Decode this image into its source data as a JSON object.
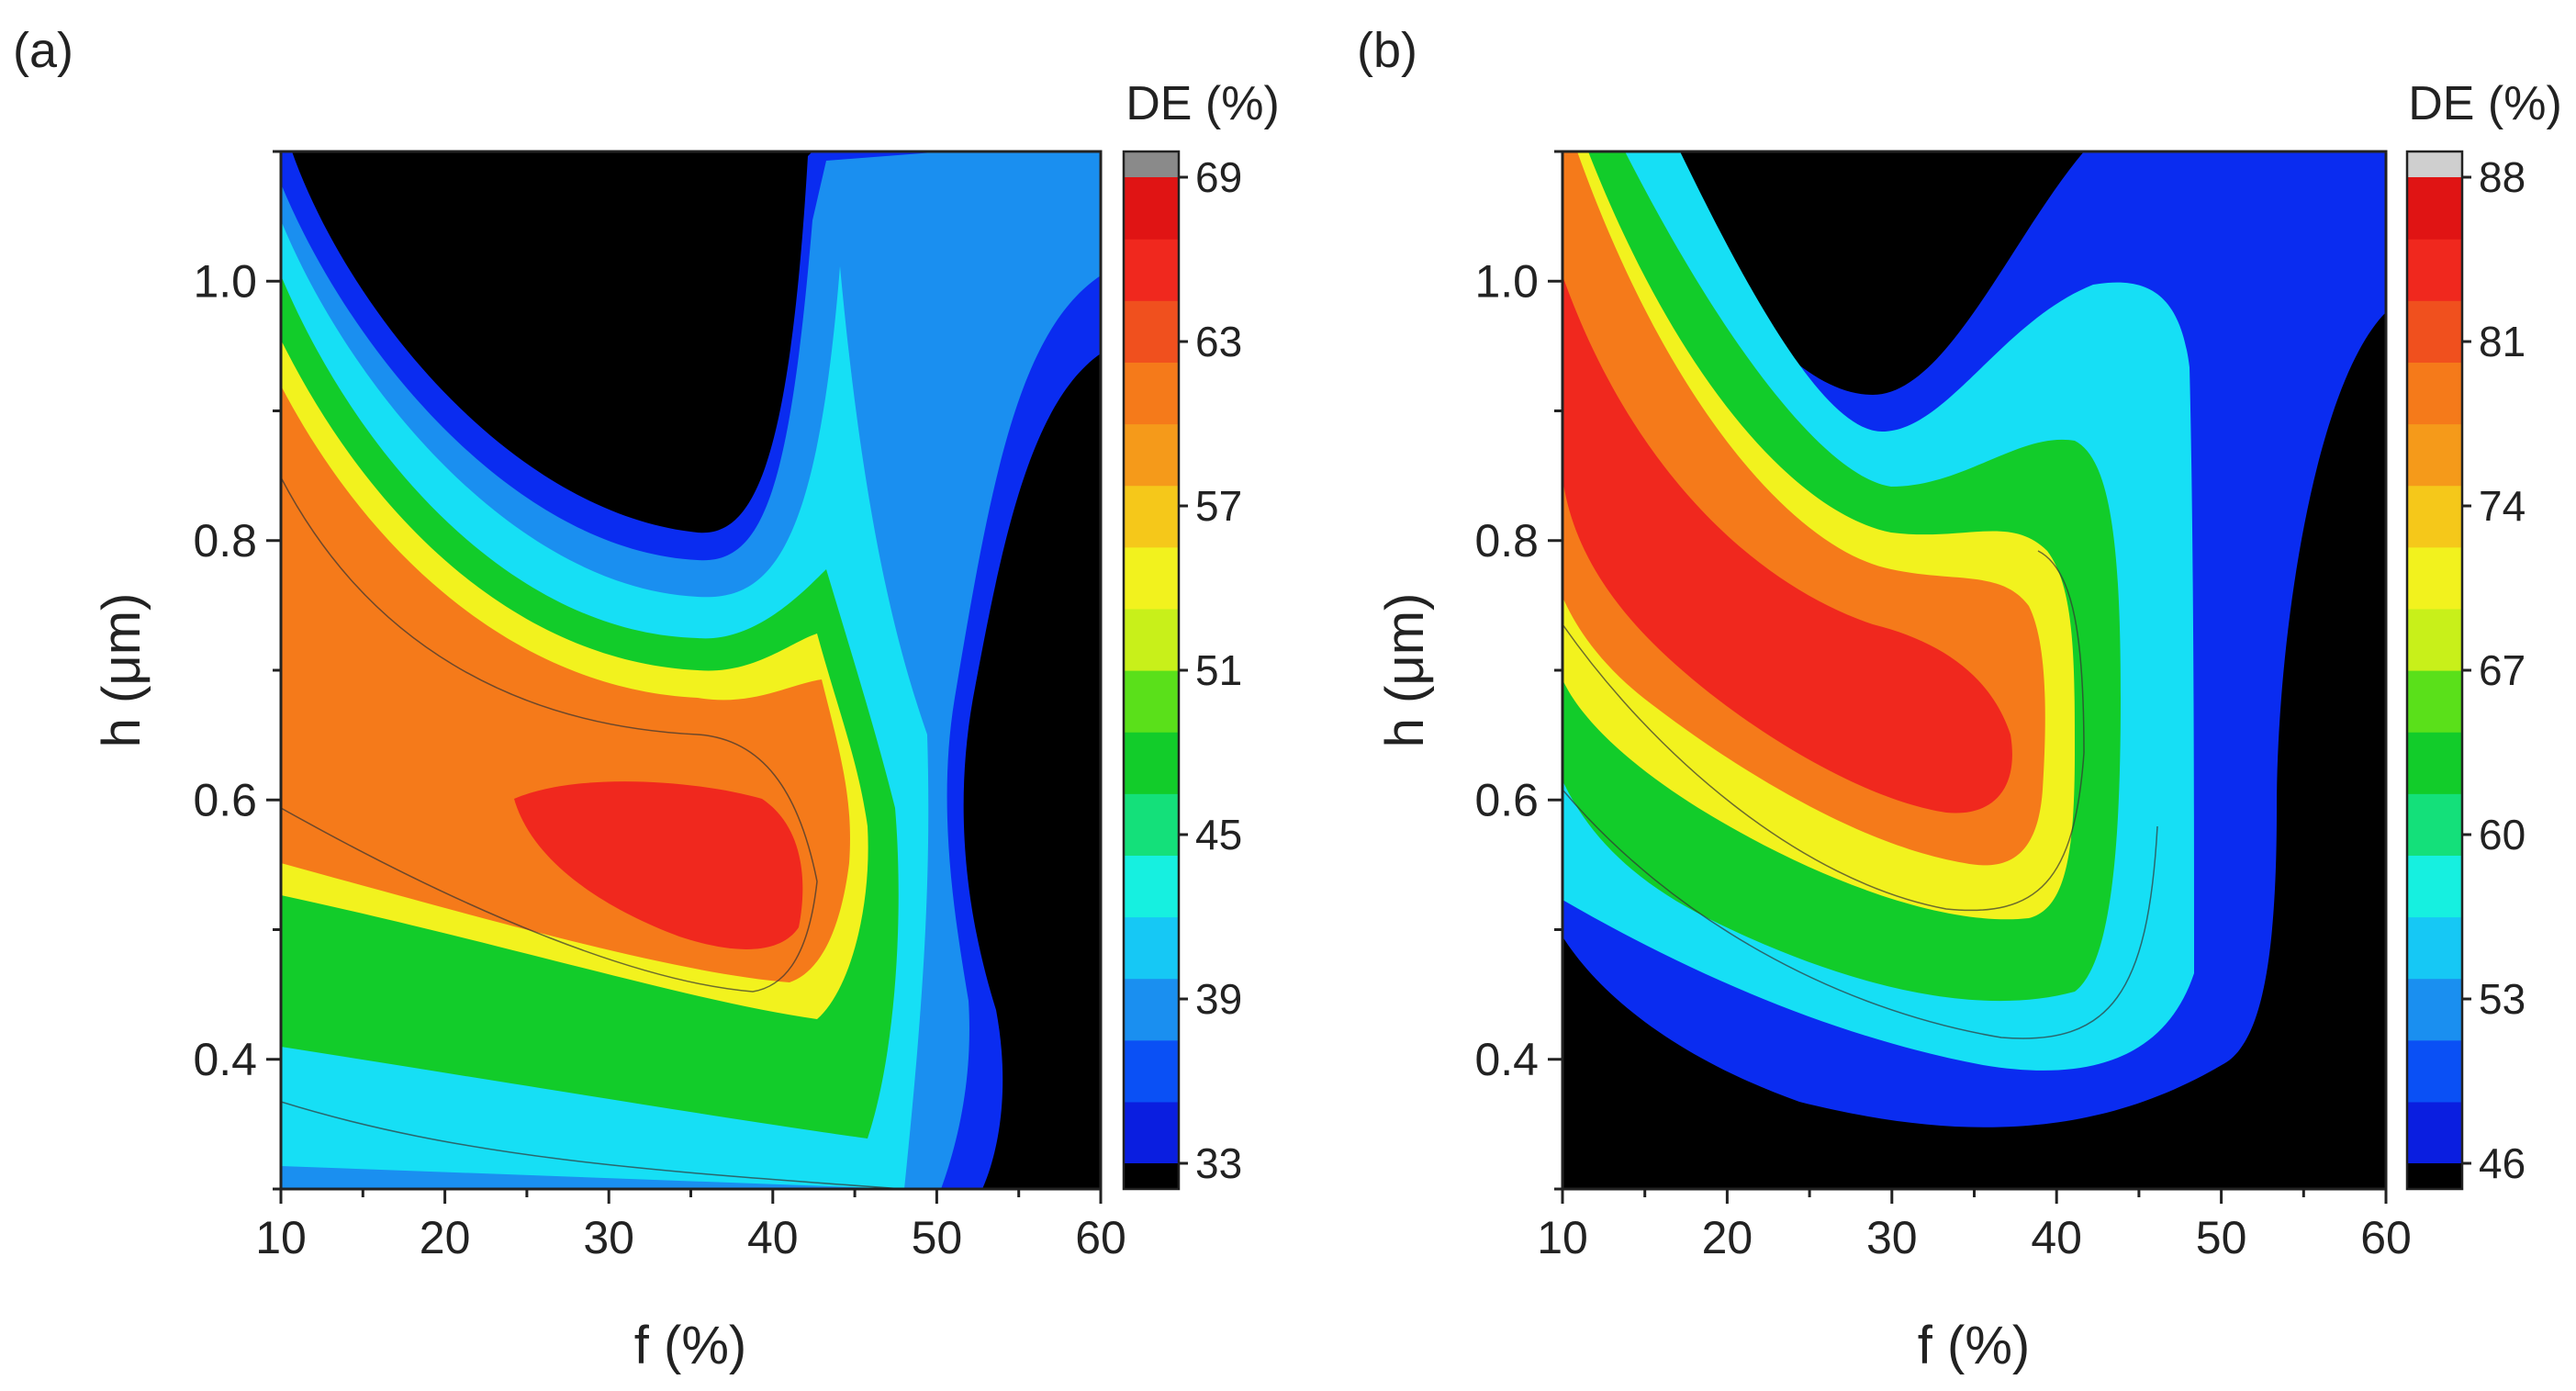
{
  "chart_data": [
    {
      "panel": "(a)",
      "type": "heatmap",
      "subtype": "filled-contour",
      "xlabel": "f (%)",
      "ylabel": "h (μm)",
      "colorbar_title": "DE (%)",
      "xlim": [
        10,
        60
      ],
      "ylim": [
        0.3,
        1.1
      ],
      "x_ticks": [
        10,
        20,
        30,
        40,
        50,
        60
      ],
      "y_ticks": [
        0.4,
        0.6,
        0.8,
        1.0
      ],
      "y_tick_labels": [
        "0.4",
        "0.6",
        "0.8",
        "1.0"
      ],
      "colorbar_range": [
        33,
        69
      ],
      "colorbar_ticks": [
        33,
        39,
        45,
        51,
        57,
        63,
        69
      ],
      "peak": {
        "f": 39,
        "h": 0.53,
        "de": 69
      },
      "below_range_color": "#000000",
      "above_range_color": "#8a8a8a"
    },
    {
      "panel": "(b)",
      "type": "heatmap",
      "subtype": "filled-contour",
      "xlabel": "f (%)",
      "ylabel": "h (μm)",
      "colorbar_title": "DE (%)",
      "xlim": [
        10,
        60
      ],
      "ylim": [
        0.3,
        1.1
      ],
      "x_ticks": [
        10,
        20,
        30,
        40,
        50,
        60
      ],
      "y_ticks": [
        0.4,
        0.6,
        0.8,
        1.0
      ],
      "y_tick_labels": [
        "0.4",
        "0.6",
        "0.8",
        "1.0"
      ],
      "colorbar_range": [
        46,
        88
      ],
      "colorbar_ticks": [
        46,
        53,
        60,
        67,
        74,
        81,
        88
      ],
      "peak": {
        "f": 30,
        "h": 0.62,
        "de": 88
      },
      "below_range_color": "#000000",
      "above_range_color": "#cfcfcf"
    }
  ]
}
